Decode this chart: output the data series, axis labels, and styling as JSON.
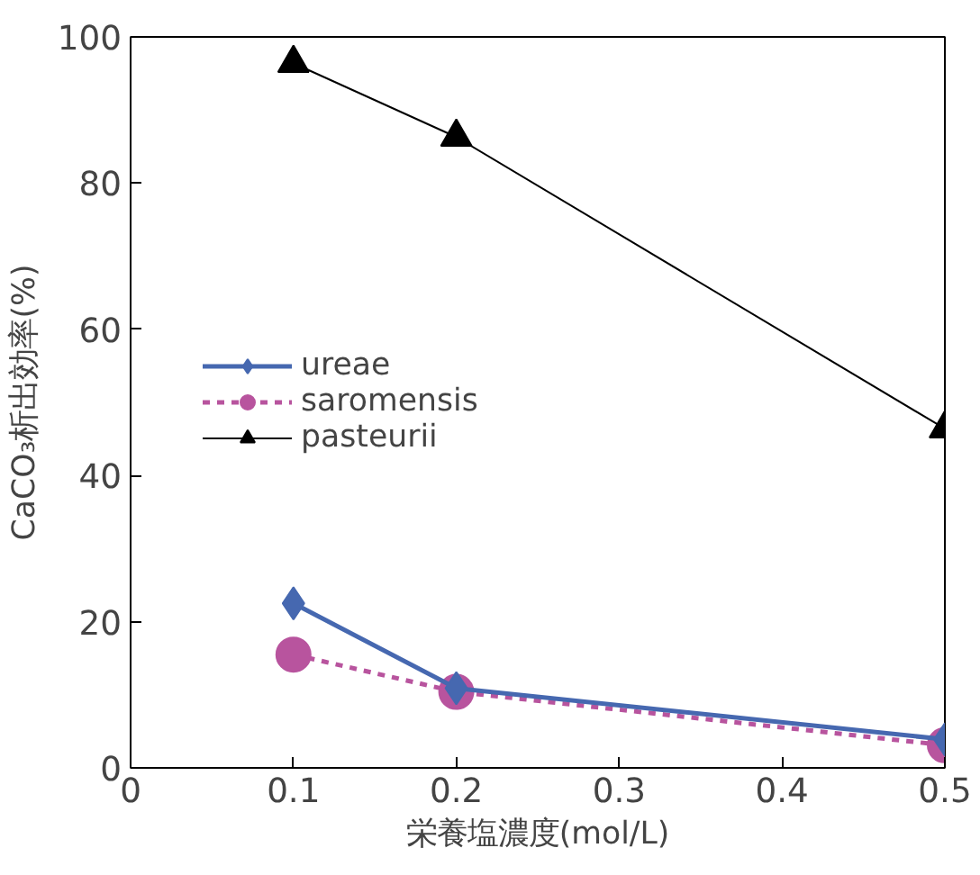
{
  "chart_data": {
    "type": "line",
    "xlabel": "栄養塩濃度(mol/L)",
    "ylabel": "CaCO₃析出効率(%)",
    "x": [
      0.1,
      0.2,
      0.5
    ],
    "series": [
      {
        "name": "ureae",
        "color": "#4668b0",
        "values": [
          22.5,
          10.9,
          3.9
        ],
        "marker": "diamond",
        "line_style": "solid"
      },
      {
        "name": "saromensis",
        "color": "#b8549e",
        "values": [
          15.5,
          10.4,
          3.1
        ],
        "marker": "circle",
        "line_style": "dashed"
      },
      {
        "name": "pasteurii",
        "color": "#000000",
        "values": [
          96.4,
          86.3,
          46.4
        ],
        "marker": "triangle",
        "line_style": "solid"
      }
    ],
    "xlim": [
      0,
      0.5
    ],
    "xticks": [
      0,
      0.1,
      0.2,
      0.3,
      0.4,
      0.5
    ],
    "ylim": [
      0,
      100
    ],
    "yticks": [
      0,
      20,
      40,
      60,
      80,
      100
    ],
    "grid": false,
    "legend": "left"
  }
}
